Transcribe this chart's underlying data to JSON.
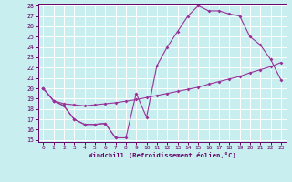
{
  "xlabel": "Windchill (Refroidissement éolien,°C)",
  "x_ticks": [
    0,
    1,
    2,
    3,
    4,
    5,
    6,
    7,
    8,
    9,
    10,
    11,
    12,
    13,
    14,
    15,
    16,
    17,
    18,
    19,
    20,
    21,
    22,
    23
  ],
  "ylim": [
    15,
    28
  ],
  "xlim": [
    -0.5,
    23.5
  ],
  "y_ticks": [
    15,
    16,
    17,
    18,
    19,
    20,
    21,
    22,
    23,
    24,
    25,
    26,
    27,
    28
  ],
  "background_color": "#c8eef0",
  "grid_color": "#ffffff",
  "line_color": "#993399",
  "line1_x": [
    0,
    1,
    2,
    3,
    4,
    5,
    6,
    7
  ],
  "line1_y": [
    20.0,
    18.8,
    18.3,
    17.0,
    16.5,
    16.5,
    16.6,
    15.2
  ],
  "line2_x": [
    0,
    1,
    2,
    3,
    4,
    5,
    6,
    7,
    8,
    9,
    10,
    11,
    12,
    13,
    14,
    15,
    16,
    17,
    18,
    19,
    20,
    21,
    22,
    23
  ],
  "line2_y": [
    20.0,
    18.8,
    18.5,
    18.4,
    18.3,
    18.4,
    18.5,
    18.6,
    18.75,
    18.9,
    19.1,
    19.3,
    19.5,
    19.7,
    19.9,
    20.1,
    20.4,
    20.65,
    20.9,
    21.15,
    21.5,
    21.8,
    22.1,
    22.5
  ],
  "line3_x": [
    0,
    1,
    2,
    3,
    4,
    5,
    6,
    7,
    8,
    9,
    10,
    11,
    12,
    13,
    14,
    15,
    16,
    17,
    18,
    19,
    20,
    21,
    22,
    23
  ],
  "line3_y": [
    20.0,
    18.8,
    18.3,
    17.0,
    16.5,
    16.5,
    16.6,
    15.2,
    15.2,
    19.5,
    17.2,
    22.2,
    24.0,
    25.5,
    27.0,
    28.0,
    27.5,
    27.5,
    27.2,
    27.0,
    25.0,
    24.2,
    22.8,
    20.8
  ]
}
